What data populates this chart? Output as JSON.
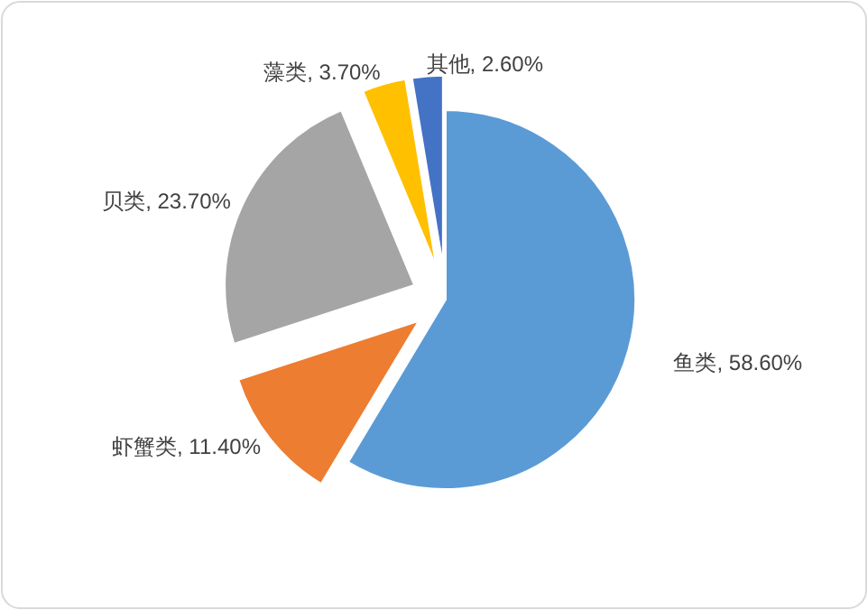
{
  "chart_data": {
    "type": "pie",
    "categories": [
      "鱼类",
      "虾蟹类",
      "贝类",
      "藻类",
      "其他"
    ],
    "values": [
      58.6,
      11.4,
      23.7,
      3.7,
      2.6
    ],
    "value_labels": [
      "58.60%",
      "11.40%",
      "23.70%",
      "3.70%",
      "2.60%"
    ],
    "colors": [
      "#5b9bd5",
      "#ed7d31",
      "#a5a5a5",
      "#ffc000",
      "#4472c4"
    ]
  }
}
